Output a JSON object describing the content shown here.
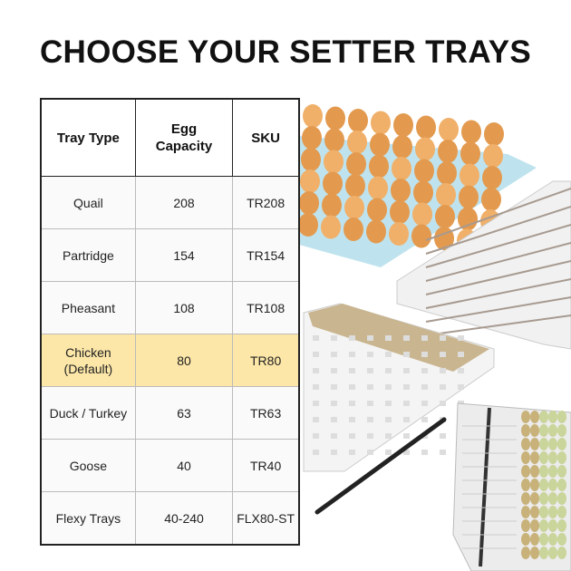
{
  "title": "CHOOSE YOUR SETTER TRAYS",
  "table": {
    "headers": [
      "Tray Type",
      "Egg Capacity",
      "SKU"
    ],
    "rows": [
      {
        "type": "Quail",
        "capacity": "208",
        "sku": "TR208"
      },
      {
        "type": "Partridge",
        "capacity": "154",
        "sku": "TR154"
      },
      {
        "type": "Pheasant",
        "capacity": "108",
        "sku": "TR108"
      },
      {
        "type": "Chicken (Default)",
        "capacity": "80",
        "sku": "TR80",
        "highlighted": true
      },
      {
        "type": "Duck / Turkey",
        "capacity": "63",
        "sku": "TR63"
      },
      {
        "type": "Goose",
        "capacity": "40",
        "sku": "TR40"
      },
      {
        "type": "Flexy Trays",
        "capacity": "40-240",
        "sku": "FLX80-ST"
      }
    ]
  },
  "colors": {
    "highlight": "#fce7a8",
    "border": "#222222"
  }
}
